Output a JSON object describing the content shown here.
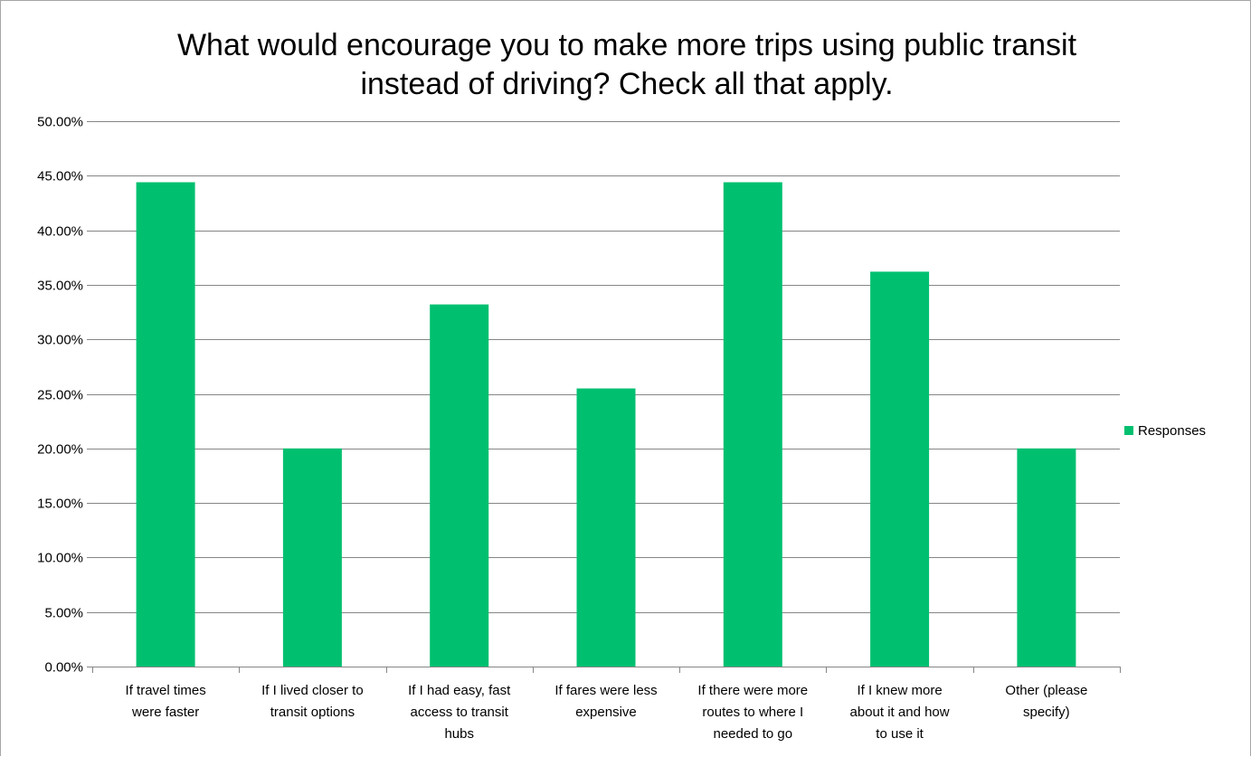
{
  "chart_data": {
    "type": "bar",
    "title_lines": [
      "What would encourage you to make more trips using public transit",
      "instead of driving? Check all that apply."
    ],
    "categories": [
      [
        "If travel times",
        "were faster"
      ],
      [
        "If I lived closer to",
        "transit options"
      ],
      [
        "If I had easy, fast",
        "access to transit",
        "hubs"
      ],
      [
        "If fares were less",
        "expensive"
      ],
      [
        "If there were more",
        "routes to where I",
        "needed to go"
      ],
      [
        "If I knew more",
        "about it and how",
        "to use it"
      ],
      [
        "Other (please",
        "specify)"
      ]
    ],
    "series": [
      {
        "name": "Responses",
        "color": "#00c070",
        "values": [
          44.4,
          20.0,
          33.2,
          25.5,
          44.4,
          36.2,
          20.0
        ]
      }
    ],
    "ylim": [
      0,
      50
    ],
    "ytick_step": 5,
    "ytick_labels": [
      "0.00%",
      "5.00%",
      "10.00%",
      "15.00%",
      "20.00%",
      "25.00%",
      "30.00%",
      "35.00%",
      "40.00%",
      "45.00%",
      "50.00%"
    ],
    "xlabel": "",
    "ylabel": "",
    "grid": true,
    "legend_position": "right"
  }
}
